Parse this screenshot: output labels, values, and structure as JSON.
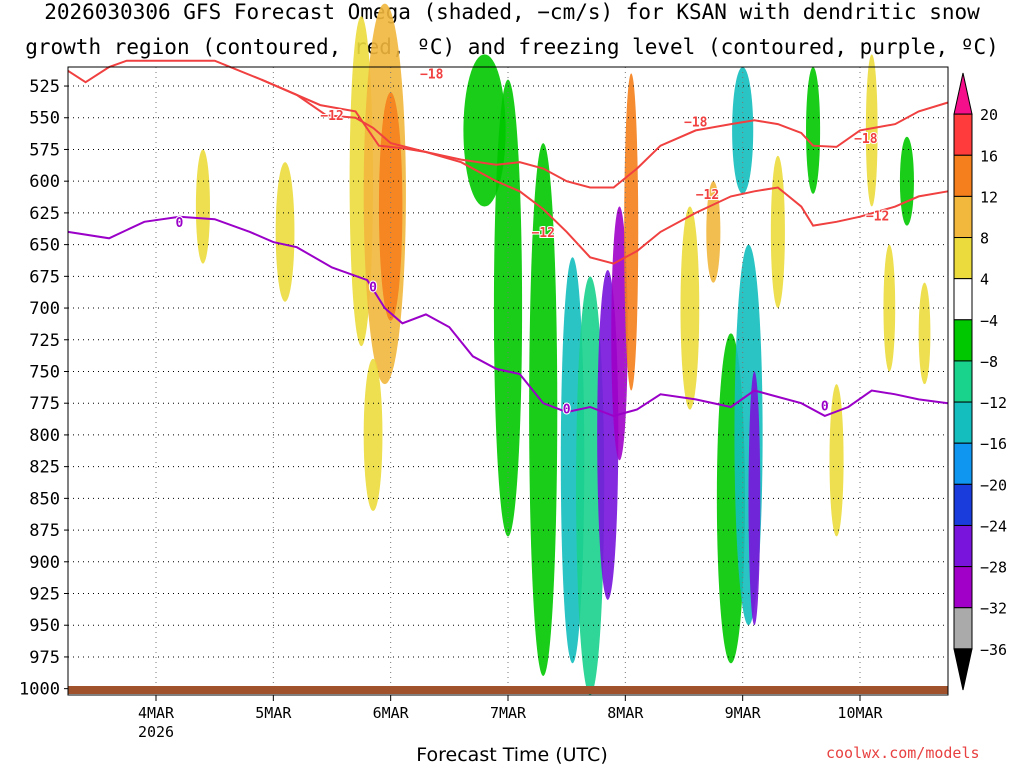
{
  "chart_data": {
    "type": "heatmap",
    "title": "2026030306 GFS Forecast Omega (shaded, −cm/s) for KSAN with dendritic snow",
    "subtitle": "growth region (contoured, red, ºC) and freezing level (contoured, purple, ºC)",
    "xlabel": "Forecast Time (UTC)",
    "credit": "coolwx.com/models",
    "y_axis": {
      "ticks": [
        525,
        550,
        575,
        600,
        625,
        650,
        675,
        700,
        725,
        750,
        775,
        800,
        825,
        850,
        875,
        900,
        925,
        950,
        975,
        1000
      ],
      "range": [
        510,
        1005
      ]
    },
    "x_axis": {
      "ticks": [
        {
          "label": "4MAR",
          "sub": "2026",
          "day": 4
        },
        {
          "label": "5MAR",
          "sub": "",
          "day": 5
        },
        {
          "label": "6MAR",
          "sub": "",
          "day": 6
        },
        {
          "label": "7MAR",
          "sub": "",
          "day": 7
        },
        {
          "label": "8MAR",
          "sub": "",
          "day": 8
        },
        {
          "label": "9MAR",
          "sub": "",
          "day": 9
        },
        {
          "label": "10MAR",
          "sub": "",
          "day": 10
        }
      ],
      "range": [
        3.25,
        10.75
      ]
    },
    "colorbar": {
      "levels": [
        "20",
        "16",
        "12",
        "8",
        "4",
        "−4",
        "−8",
        "−12",
        "−16",
        "−20",
        "−24",
        "−28",
        "−32",
        "−36"
      ],
      "colors": [
        "#f50f8a",
        "#ff3b3b",
        "#f57f1c",
        "#f2b73d",
        "#ebdb3c",
        "#ffffff",
        "#00c800",
        "#19d28c",
        "#14bebe",
        "#0f96f0",
        "#1a3cdc",
        "#7814dc",
        "#a000c8",
        "#aaaaaa",
        "#000000"
      ]
    },
    "contour_labels": {
      "m18": "−18",
      "m12": "−12",
      "zero": "0"
    },
    "series": [
      {
        "color": "#f04040",
        "label": "−18",
        "x": [
          3.25,
          3.4,
          3.6,
          3.75,
          4.0,
          4.5,
          4.9,
          5.1,
          5.4,
          5.7,
          5.9,
          6.1,
          6.3,
          6.6,
          6.9,
          7.1,
          7.3,
          7.5,
          7.7,
          7.9,
          8.1,
          8.3,
          8.6,
          8.9,
          9.1,
          9.3,
          9.5,
          9.6,
          9.8,
          10.0,
          10.3,
          10.5,
          10.75
        ],
        "y": [
          513,
          522,
          510,
          505,
          505,
          505,
          520,
          528,
          540,
          545,
          572,
          574,
          577,
          583,
          587,
          585,
          590,
          600,
          605,
          605,
          590,
          572,
          560,
          555,
          552,
          555,
          562,
          572,
          573,
          560,
          555,
          545,
          538
        ]
      },
      {
        "color": "#f04040",
        "label": "−12",
        "x": [
          4.9,
          5.2,
          5.45,
          5.7,
          5.85,
          6.0,
          6.3,
          6.6,
          6.9,
          7.1,
          7.3,
          7.5,
          7.7,
          7.9,
          8.1,
          8.3,
          8.6,
          8.9,
          9.1,
          9.3,
          9.5,
          9.6,
          9.8,
          10.0,
          10.3,
          10.5,
          10.75
        ],
        "y": [
          520,
          532,
          548,
          550,
          558,
          570,
          577,
          585,
          600,
          608,
          622,
          640,
          660,
          665,
          655,
          640,
          625,
          612,
          608,
          605,
          620,
          635,
          632,
          628,
          620,
          612,
          608
        ]
      },
      {
        "color": "#9a00c8",
        "label": "0",
        "x": [
          3.25,
          3.6,
          3.9,
          4.2,
          4.5,
          4.8,
          5.0,
          5.2,
          5.5,
          5.8,
          5.95,
          6.1,
          6.3,
          6.5,
          6.7,
          6.9,
          7.1,
          7.3,
          7.5,
          7.7,
          7.9,
          8.1,
          8.3,
          8.6,
          8.9,
          9.1,
          9.3,
          9.5,
          9.7,
          9.9,
          10.1,
          10.3,
          10.5,
          10.75
        ],
        "y": [
          640,
          645,
          632,
          628,
          630,
          640,
          648,
          652,
          668,
          678,
          700,
          712,
          705,
          715,
          738,
          748,
          752,
          775,
          782,
          778,
          785,
          780,
          768,
          772,
          778,
          765,
          770,
          775,
          785,
          778,
          765,
          768,
          772,
          775
        ]
      }
    ]
  }
}
